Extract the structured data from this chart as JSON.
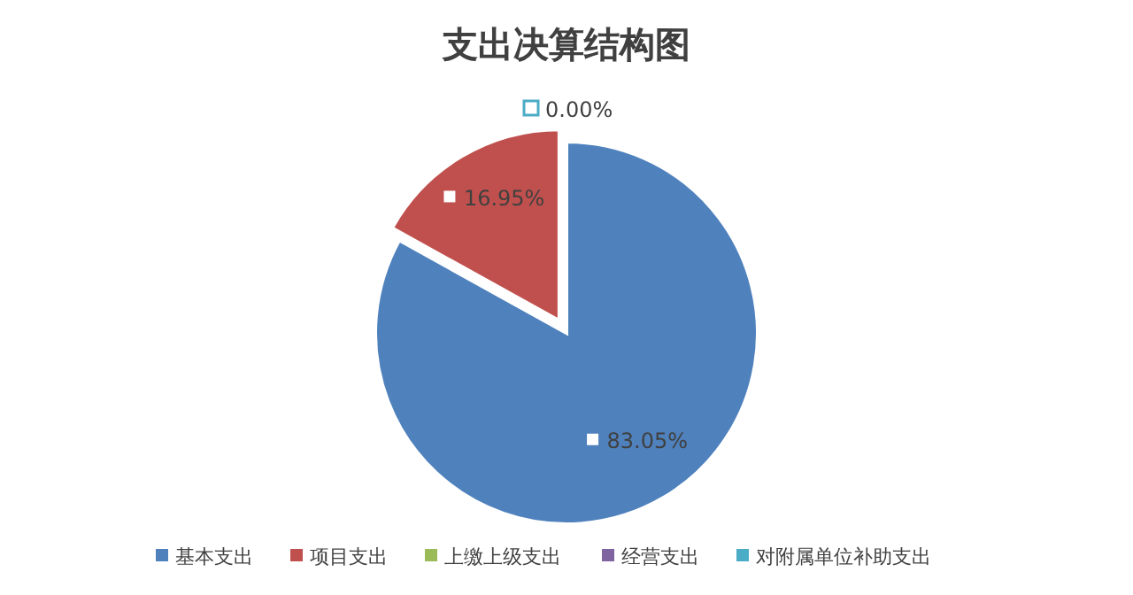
{
  "chart_data": {
    "type": "pie",
    "title": "支出决算结构图",
    "categories": [
      "基本支出",
      "项目支出",
      "上缴上级支出",
      "经营支出",
      "对附属单位补助支出"
    ],
    "values": [
      83.05,
      16.95,
      0,
      0,
      0
    ],
    "colors": [
      "#4f81bd",
      "#c0504d",
      "#9bbb59",
      "#8064a2",
      "#4bacc6"
    ],
    "value_labels": [
      "83.05%",
      "16.95%",
      null,
      null,
      "0.00%"
    ],
    "legend": "bottom"
  }
}
